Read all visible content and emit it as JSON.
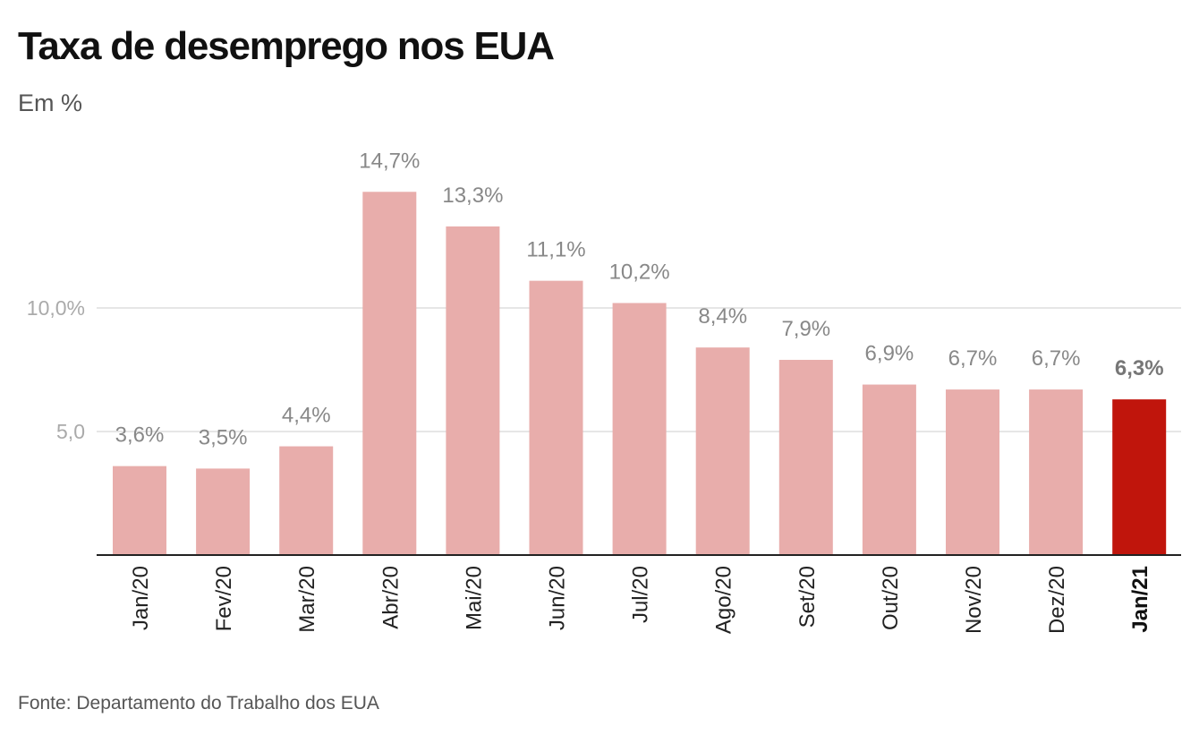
{
  "chart_data": {
    "type": "bar",
    "title": "Taxa de desemprego nos EUA",
    "subtitle": "Em %",
    "source": "Fonte: Departamento do Trabalho dos EUA",
    "categories": [
      "Jan/20",
      "Fev/20",
      "Mar/20",
      "Abr/20",
      "Mai/20",
      "Jun/20",
      "Jul/20",
      "Ago/20",
      "Set/20",
      "Out/20",
      "Nov/20",
      "Dez/20",
      "Jan/21"
    ],
    "values": [
      3.6,
      3.5,
      4.4,
      14.7,
      13.3,
      11.1,
      10.2,
      8.4,
      7.9,
      6.9,
      6.7,
      6.7,
      6.3
    ],
    "value_labels": [
      "3,6%",
      "3,5%",
      "4,4%",
      "14,7%",
      "13,3%",
      "11,1%",
      "10,2%",
      "8,4%",
      "7,9%",
      "6,9%",
      "6,7%",
      "6,7%",
      "6,3%"
    ],
    "highlight_index": 12,
    "yticks": [
      {
        "value": 5,
        "label": "5,0"
      },
      {
        "value": 10,
        "label": "10,0%"
      }
    ],
    "ylim": [
      0,
      15
    ],
    "grid": true,
    "colors": {
      "bar": "#e8adab",
      "highlight": "#c0150c",
      "grid": "#dddddd",
      "axis": "#222222"
    }
  }
}
